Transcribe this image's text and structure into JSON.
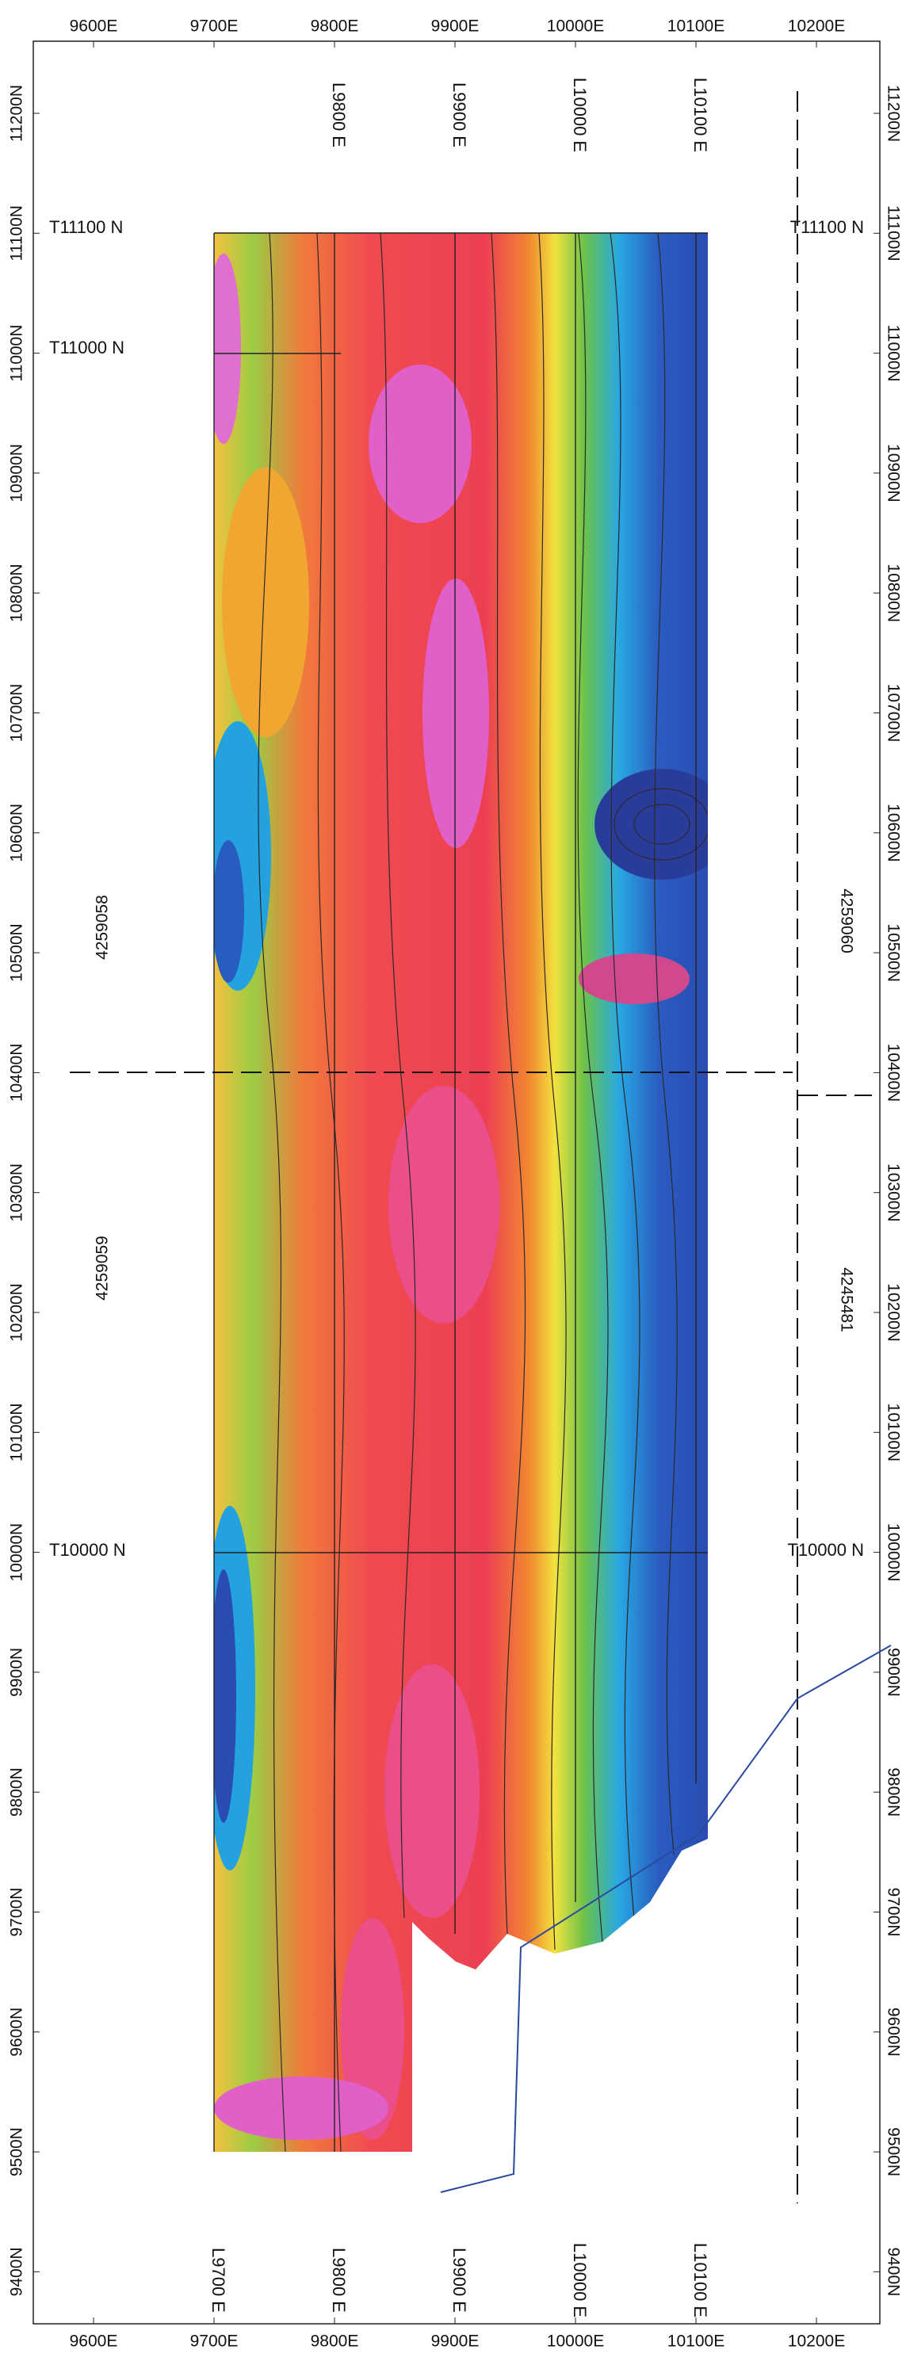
{
  "axes": {
    "easting_top": [
      "9600E",
      "9700E",
      "9800E",
      "9900E",
      "10000E",
      "10100E",
      "10200E"
    ],
    "easting_bottom": [
      "9600E",
      "9700E",
      "9800E",
      "9900E",
      "10000E",
      "10100E",
      "10200E"
    ],
    "northing_left": [
      "11200N",
      "11100N",
      "11000N",
      "10900N",
      "10800N",
      "10700N",
      "10600N",
      "10500N",
      "10400N",
      "10300N",
      "10200N",
      "10100N",
      "10000N",
      "9900N",
      "9800N",
      "9700N",
      "9600N",
      "9500N",
      "9400N"
    ],
    "northing_right": [
      "11200N",
      "11100N",
      "11000N",
      "10900N",
      "10800N",
      "10700N",
      "10600N",
      "10500N",
      "10400N",
      "10300N",
      "10200N",
      "10100N",
      "10000N",
      "9900N",
      "9800N",
      "9700N",
      "9600N",
      "9500N",
      "9400N"
    ]
  },
  "survey_lines_top": [
    "L9800 E",
    "L9900 E",
    "L10000 E",
    "L10100 E"
  ],
  "survey_lines_bottom": [
    "L9700 E",
    "L9800 E",
    "L9900 E",
    "L10000 E",
    "L10100 E"
  ],
  "tie_lines_left": [
    "T11100 N",
    "T11000 N",
    "T10000 N"
  ],
  "tie_lines_right": [
    "T11100 N",
    "T10000 N"
  ],
  "claims": [
    "4259058",
    "4259059",
    "4259060",
    "4245481"
  ]
}
